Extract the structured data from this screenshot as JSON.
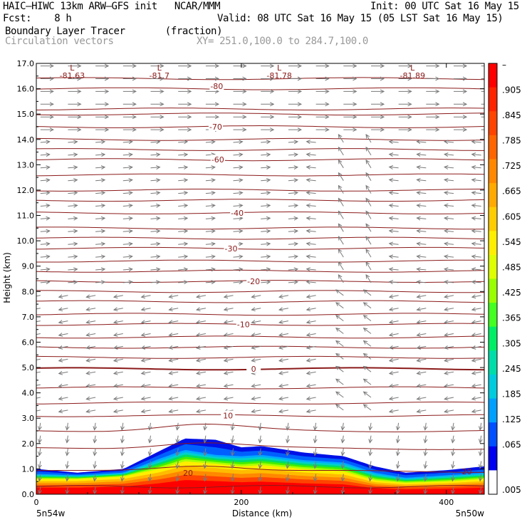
{
  "header": {
    "model_line": "HAIC–HIWC 13km ARW–GFS init   NCAR/MMM",
    "init_line": "Init: 00 UTC Sat 16 May 15",
    "fcst_line": "Fcst:    8 h",
    "valid_line": "Valid: 08 UTC Sat 16 May 15 (05 LST Sat 16 May 15)",
    "field_line": "Boundary Layer Tracer       (fraction)",
    "vector_line": "Circulation vectors",
    "xy_line": "XY= 251.0,100.0 to 284.7,100.0"
  },
  "chart_data": {
    "type": "heatmap",
    "xlabel": "Distance (km)",
    "ylabel": "Height (km)",
    "xlim": [
      0,
      437
    ],
    "ylim": [
      0,
      17
    ],
    "x_ticks": [
      "0",
      "200",
      "400"
    ],
    "x_tick_values": [
      0,
      200,
      400
    ],
    "y_ticks": [
      "0.0",
      "1.0",
      "2.0",
      "3.0",
      "4.0",
      "5.0",
      "6.0",
      "7.0",
      "8.0",
      "9.0",
      "10.0",
      "11.0",
      "12.0",
      "13.0",
      "14.0",
      "15.0",
      "16.0",
      "17.0"
    ],
    "left_endpoint": "5n54w",
    "right_endpoint": "5n50w",
    "colorbar": {
      "labels": [
        "–",
        ".905",
        ".845",
        ".785",
        ".725",
        ".665",
        ".605",
        ".545",
        ".485",
        ".425",
        ".365",
        ".305",
        ".245",
        ".185",
        ".125",
        ".065",
        ".005"
      ],
      "colors": [
        "#ff0000",
        "#ff2400",
        "#ff4400",
        "#ff6600",
        "#ff8800",
        "#ffaa00",
        "#ffcc00",
        "#ffee00",
        "#ddff00",
        "#99ff00",
        "#44ff22",
        "#00ee66",
        "#00ddaa",
        "#00ccdd",
        "#00a0ff",
        "#0050ff",
        "#0000ee",
        "#ffffff"
      ]
    },
    "tracer_top_km": {
      "x": [
        0,
        40,
        85,
        120,
        145,
        175,
        200,
        220,
        260,
        300,
        330,
        360,
        400,
        437
      ],
      "red_top": [
        0.6,
        0.6,
        0.7,
        1.0,
        1.3,
        1.2,
        1.1,
        1.15,
        1.0,
        0.9,
        0.55,
        0.45,
        0.5,
        0.6
      ],
      "green_top": [
        0.8,
        0.75,
        0.85,
        1.4,
        1.75,
        1.55,
        1.5,
        1.55,
        1.35,
        1.25,
        0.85,
        0.65,
        0.75,
        0.85
      ],
      "blue_top": [
        1.0,
        0.85,
        1.0,
        1.7,
        2.2,
        2.15,
        1.85,
        1.9,
        1.65,
        1.5,
        1.1,
        0.85,
        0.95,
        1.1
      ]
    },
    "temperature_contours": {
      "labeled": [
        {
          "value": "20",
          "x": 148,
          "y": 0.85
        },
        {
          "value": "20",
          "x": 420,
          "y": 0.9
        },
        {
          "value": "10",
          "x": 187,
          "y": 3.1
        },
        {
          "value": "0",
          "x": 212,
          "y": 4.95
        },
        {
          "value": "-10",
          "x": 202,
          "y": 6.7
        },
        {
          "value": "-20",
          "x": 212,
          "y": 8.4
        },
        {
          "value": "-30",
          "x": 190,
          "y": 9.7
        },
        {
          "value": "-40",
          "x": 196,
          "y": 11.1
        },
        {
          "value": "-60",
          "x": 177,
          "y": 13.2
        },
        {
          "value": "-70",
          "x": 175,
          "y": 14.5
        },
        {
          "value": "-80",
          "x": 176,
          "y": 16.1
        }
      ],
      "levels_km": [
        0.3,
        0.9,
        1.8,
        2.5,
        3.1,
        3.6,
        4.2,
        4.95,
        5.4,
        5.8,
        6.2,
        6.7,
        7.1,
        7.6,
        8.0,
        8.4,
        8.8,
        9.2,
        9.7,
        10.1,
        10.5,
        11.1,
        11.6,
        12.0,
        12.6,
        13.2,
        13.6,
        14.0,
        14.5,
        15.0,
        15.2,
        16.0,
        16.4
      ]
    },
    "lows": [
      {
        "label": "L",
        "value": "-81.63",
        "x": 35
      },
      {
        "label": "L",
        "value": "-81.7",
        "x": 120
      },
      {
        "label": "L",
        "value": "-81.78",
        "x": 237
      },
      {
        "label": "L",
        "value": "-81.89",
        "x": 367
      }
    ]
  }
}
